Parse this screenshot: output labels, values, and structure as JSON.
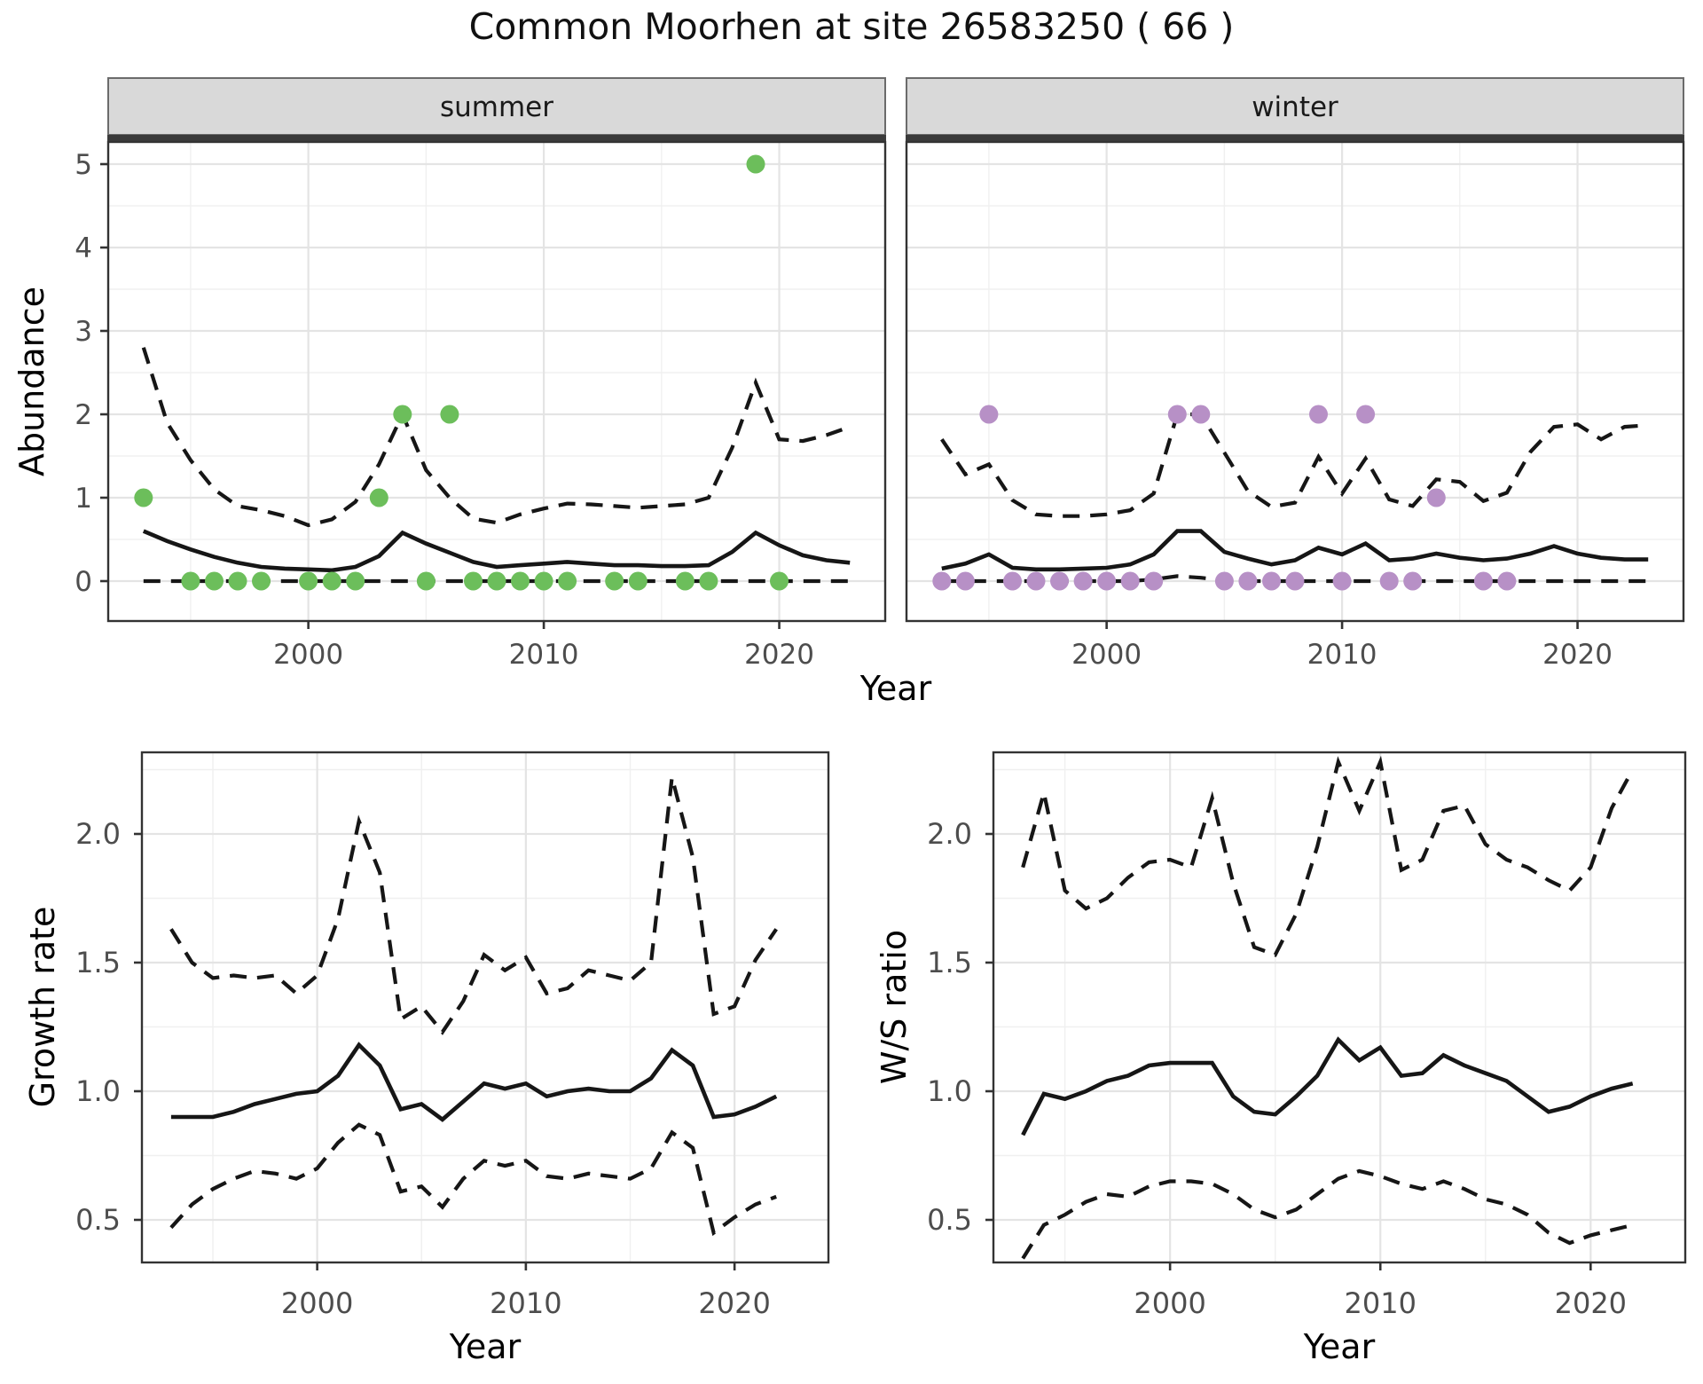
{
  "title": "Common Moorhen at site 26583250 ( 66 )",
  "shared": {
    "x_axis_label": "Year",
    "x_tick_values": [
      2000,
      2010,
      2020
    ],
    "x_tick_labels": [
      "2000",
      "2010",
      "2020"
    ]
  },
  "colors": {
    "summer_point": "#6CBE5B",
    "winter_point": "#B790C6",
    "line": "#161616",
    "tick_text": "#4d4d4d",
    "axis_text": "#000000",
    "strip_bg": "#d9d9d9",
    "strip_border": "#6b6b6b",
    "strip_band": "#3a3a3a",
    "grid_major": "#e4e4e4",
    "grid_minor": "#f0f0f0",
    "panel_border": "#333333",
    "panel_bg": "#ffffff"
  },
  "chart_data": [
    {
      "id": "abundance-summer",
      "type": "line",
      "facet_label": "summer",
      "ylabel": "Abundance",
      "xlabel": "Year",
      "xlim": [
        1991.5,
        2024.5
      ],
      "ylim": [
        -0.48,
        5.27
      ],
      "y_tick_values": [
        0,
        1,
        2,
        3,
        4,
        5
      ],
      "y_tick_labels": [
        "0",
        "1",
        "2",
        "3",
        "4",
        "5"
      ],
      "x": [
        1993,
        1994,
        1995,
        1996,
        1997,
        1998,
        1999,
        2000,
        2001,
        2002,
        2003,
        2004,
        2005,
        2006,
        2007,
        2008,
        2009,
        2010,
        2011,
        2012,
        2013,
        2014,
        2015,
        2016,
        2017,
        2018,
        2019,
        2020,
        2021,
        2022,
        2023
      ],
      "series": [
        {
          "name": "modelled_mean",
          "style": "solid",
          "values": [
            0.6,
            0.48,
            0.38,
            0.29,
            0.22,
            0.17,
            0.15,
            0.14,
            0.13,
            0.17,
            0.3,
            0.58,
            0.45,
            0.34,
            0.23,
            0.17,
            0.19,
            0.21,
            0.23,
            0.21,
            0.19,
            0.19,
            0.18,
            0.18,
            0.19,
            0.35,
            0.58,
            0.43,
            0.31,
            0.25,
            0.22
          ]
        },
        {
          "name": "upper_ci",
          "style": "dashed",
          "values": [
            2.8,
            1.9,
            1.45,
            1.1,
            0.9,
            0.85,
            0.78,
            0.67,
            0.74,
            0.95,
            1.4,
            2.0,
            1.33,
            1.0,
            0.75,
            0.7,
            0.8,
            0.87,
            0.93,
            0.92,
            0.9,
            0.88,
            0.9,
            0.92,
            1.0,
            1.6,
            2.38,
            1.7,
            1.68,
            1.75,
            1.85
          ]
        },
        {
          "name": "lower_ci",
          "style": "dashed",
          "values": [
            0,
            0,
            0,
            0,
            0,
            0,
            0,
            0,
            0,
            0,
            0,
            0,
            0,
            0,
            0,
            0,
            0,
            0,
            0,
            0,
            0,
            0,
            0,
            0,
            0,
            0,
            0,
            0,
            0,
            0,
            0
          ]
        }
      ],
      "points": {
        "name": "observed_counts",
        "color_key": "summer_point",
        "data": [
          [
            1993,
            1
          ],
          [
            1995,
            0
          ],
          [
            1996,
            0
          ],
          [
            1997,
            0
          ],
          [
            1998,
            0
          ],
          [
            2000,
            0
          ],
          [
            2001,
            0
          ],
          [
            2002,
            0
          ],
          [
            2003,
            1
          ],
          [
            2004,
            2
          ],
          [
            2005,
            0
          ],
          [
            2006,
            2
          ],
          [
            2007,
            0
          ],
          [
            2008,
            0
          ],
          [
            2009,
            0
          ],
          [
            2010,
            0
          ],
          [
            2011,
            0
          ],
          [
            2013,
            0
          ],
          [
            2014,
            0
          ],
          [
            2016,
            0
          ],
          [
            2017,
            0
          ],
          [
            2019,
            5
          ],
          [
            2020,
            0
          ]
        ]
      }
    },
    {
      "id": "abundance-winter",
      "type": "line",
      "facet_label": "winter",
      "ylabel": "",
      "xlabel": "Year",
      "xlim": [
        1991.5,
        2024.5
      ],
      "ylim": [
        -0.48,
        5.27
      ],
      "y_tick_values": [
        0,
        1,
        2,
        3,
        4,
        5
      ],
      "y_tick_labels": [
        "0",
        "1",
        "2",
        "3",
        "4",
        "5"
      ],
      "x": [
        1993,
        1994,
        1995,
        1996,
        1997,
        1998,
        1999,
        2000,
        2001,
        2002,
        2003,
        2004,
        2005,
        2006,
        2007,
        2008,
        2009,
        2010,
        2011,
        2012,
        2013,
        2014,
        2015,
        2016,
        2017,
        2018,
        2019,
        2020,
        2021,
        2022,
        2023
      ],
      "series": [
        {
          "name": "modelled_mean",
          "style": "solid",
          "values": [
            0.15,
            0.21,
            0.32,
            0.16,
            0.14,
            0.14,
            0.15,
            0.16,
            0.2,
            0.32,
            0.6,
            0.6,
            0.35,
            0.27,
            0.2,
            0.25,
            0.4,
            0.32,
            0.45,
            0.25,
            0.27,
            0.33,
            0.28,
            0.25,
            0.27,
            0.33,
            0.42,
            0.33,
            0.28,
            0.26,
            0.26
          ]
        },
        {
          "name": "upper_ci",
          "style": "dashed",
          "values": [
            1.7,
            1.28,
            1.4,
            0.97,
            0.8,
            0.78,
            0.78,
            0.8,
            0.85,
            1.05,
            2.0,
            2.0,
            1.54,
            1.08,
            0.89,
            0.94,
            1.49,
            1.05,
            1.47,
            0.98,
            0.9,
            1.22,
            1.19,
            0.96,
            1.06,
            1.55,
            1.85,
            1.88,
            1.7,
            1.85,
            1.87
          ]
        },
        {
          "name": "lower_ci",
          "style": "dashed",
          "values": [
            0,
            0,
            0,
            0,
            0,
            0,
            0,
            0,
            0,
            0.02,
            0.06,
            0.04,
            0.01,
            0,
            0,
            0,
            0,
            0,
            0,
            0,
            0,
            0,
            0,
            0,
            0,
            0,
            0,
            0,
            0,
            0,
            0
          ]
        }
      ],
      "points": {
        "name": "observed_counts",
        "color_key": "winter_point",
        "data": [
          [
            1993,
            0
          ],
          [
            1994,
            0
          ],
          [
            1995,
            2
          ],
          [
            1996,
            0
          ],
          [
            1997,
            0
          ],
          [
            1998,
            0
          ],
          [
            1999,
            0
          ],
          [
            2000,
            0
          ],
          [
            2001,
            0
          ],
          [
            2002,
            0
          ],
          [
            2003,
            2
          ],
          [
            2004,
            2
          ],
          [
            2005,
            0
          ],
          [
            2006,
            0
          ],
          [
            2007,
            0
          ],
          [
            2008,
            0
          ],
          [
            2009,
            2
          ],
          [
            2010,
            0
          ],
          [
            2011,
            2
          ],
          [
            2012,
            0
          ],
          [
            2013,
            0
          ],
          [
            2014,
            1
          ],
          [
            2016,
            0
          ],
          [
            2017,
            0
          ]
        ]
      }
    },
    {
      "id": "growth-rate",
      "type": "line",
      "facet_label": "",
      "ylabel": "Growth rate",
      "xlabel": "Year",
      "xlim": [
        1991.6,
        2024.5
      ],
      "ylim": [
        0.33,
        2.32
      ],
      "y_tick_values": [
        0.5,
        1.0,
        1.5,
        2.0
      ],
      "y_tick_labels": [
        "0.5",
        "1.0",
        "1.5",
        "2.0"
      ],
      "x": [
        1993,
        1994,
        1995,
        1996,
        1997,
        1998,
        1999,
        2000,
        2001,
        2002,
        2003,
        2004,
        2005,
        2006,
        2007,
        2008,
        2009,
        2010,
        2011,
        2012,
        2013,
        2014,
        2015,
        2016,
        2017,
        2018,
        2019,
        2020,
        2021,
        2022
      ],
      "series": [
        {
          "name": "modelled_mean",
          "style": "solid",
          "values": [
            0.9,
            0.9,
            0.9,
            0.92,
            0.95,
            0.97,
            0.99,
            1.0,
            1.06,
            1.18,
            1.1,
            0.93,
            0.95,
            0.89,
            0.96,
            1.03,
            1.01,
            1.03,
            0.98,
            1.0,
            1.01,
            1.0,
            1.0,
            1.05,
            1.16,
            1.1,
            0.9,
            0.91,
            0.94,
            0.98
          ]
        },
        {
          "name": "upper_ci",
          "style": "dashed",
          "values": [
            1.63,
            1.5,
            1.44,
            1.45,
            1.44,
            1.45,
            1.38,
            1.45,
            1.67,
            2.05,
            1.85,
            1.28,
            1.33,
            1.23,
            1.35,
            1.53,
            1.47,
            1.52,
            1.38,
            1.4,
            1.47,
            1.45,
            1.43,
            1.5,
            2.22,
            1.91,
            1.3,
            1.33,
            1.51,
            1.63
          ]
        },
        {
          "name": "lower_ci",
          "style": "dashed",
          "values": [
            0.47,
            0.56,
            0.62,
            0.66,
            0.69,
            0.68,
            0.66,
            0.7,
            0.8,
            0.87,
            0.83,
            0.61,
            0.63,
            0.55,
            0.66,
            0.73,
            0.71,
            0.73,
            0.67,
            0.66,
            0.68,
            0.67,
            0.66,
            0.7,
            0.84,
            0.78,
            0.45,
            0.51,
            0.56,
            0.59
          ]
        }
      ]
    },
    {
      "id": "ws-ratio",
      "type": "line",
      "facet_label": "",
      "ylabel": "W/S ratio",
      "xlabel": "Year",
      "xlim": [
        1991.6,
        2024.5
      ],
      "ylim": [
        0.33,
        2.32
      ],
      "y_tick_values": [
        0.5,
        1.0,
        1.5,
        2.0
      ],
      "y_tick_labels": [
        "0.5",
        "1.0",
        "1.5",
        "2.0"
      ],
      "x": [
        1993,
        1994,
        1995,
        1996,
        1997,
        1998,
        1999,
        2000,
        2001,
        2002,
        2003,
        2004,
        2005,
        2006,
        2007,
        2008,
        2009,
        2010,
        2011,
        2012,
        2013,
        2014,
        2015,
        2016,
        2017,
        2018,
        2019,
        2020,
        2021,
        2022
      ],
      "series": [
        {
          "name": "modelled_mean",
          "style": "solid",
          "values": [
            0.83,
            0.99,
            0.97,
            1.0,
            1.04,
            1.06,
            1.1,
            1.11,
            1.11,
            1.11,
            0.98,
            0.92,
            0.91,
            0.98,
            1.06,
            1.2,
            1.12,
            1.17,
            1.06,
            1.07,
            1.14,
            1.1,
            1.07,
            1.04,
            0.98,
            0.92,
            0.94,
            0.98,
            1.01,
            1.03
          ]
        },
        {
          "name": "upper_ci",
          "style": "dashed",
          "values": [
            1.87,
            2.16,
            1.78,
            1.71,
            1.75,
            1.83,
            1.89,
            1.9,
            1.87,
            2.14,
            1.81,
            1.56,
            1.53,
            1.69,
            1.95,
            2.28,
            2.09,
            2.28,
            1.86,
            1.9,
            2.09,
            2.11,
            1.96,
            1.9,
            1.87,
            1.82,
            1.78,
            1.87,
            2.1,
            2.25
          ]
        },
        {
          "name": "lower_ci",
          "style": "dashed",
          "values": [
            0.35,
            0.48,
            0.52,
            0.57,
            0.6,
            0.59,
            0.63,
            0.65,
            0.65,
            0.64,
            0.6,
            0.54,
            0.51,
            0.54,
            0.6,
            0.66,
            0.69,
            0.67,
            0.64,
            0.62,
            0.65,
            0.62,
            0.58,
            0.56,
            0.52,
            0.45,
            0.41,
            0.44,
            0.46,
            0.48
          ]
        }
      ]
    }
  ]
}
